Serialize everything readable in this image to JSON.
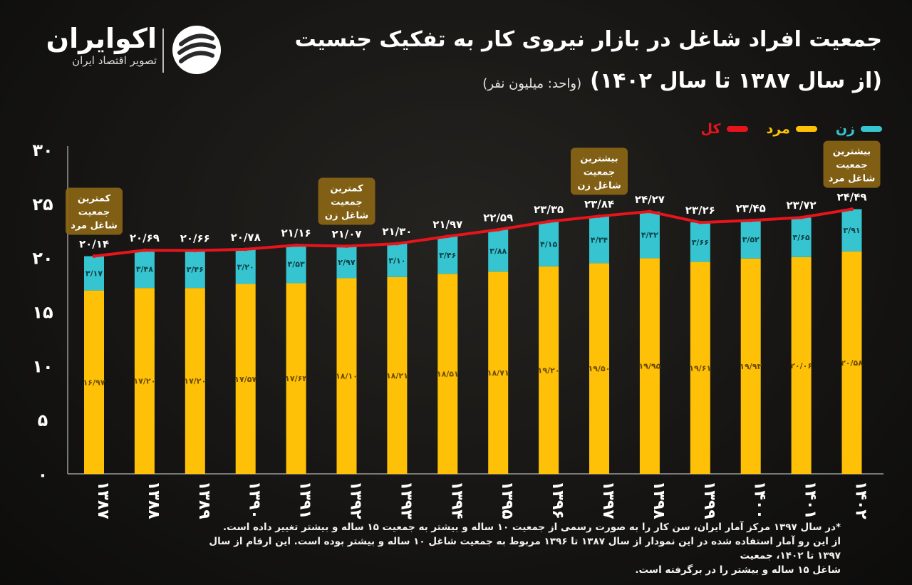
{
  "header": {
    "title": "جمعیت افراد شاغل در بازار نیروی کار به تفکیک جنسیت",
    "subtitle": "(از سال ۱۳۸۷ تا سال ۱۴۰۲)",
    "unit": "(واحد: میلیون نفر)"
  },
  "brand": {
    "name": "اکوایران",
    "tagline": "تصویر اقتصاد ایران",
    "icon": "ekoiran-logo-icon"
  },
  "legend": [
    {
      "label": "زن",
      "color": "#36c5d0"
    },
    {
      "label": "مرد",
      "color": "#ffc107"
    },
    {
      "label": "کل",
      "color": "#e8141c"
    }
  ],
  "chart_data": {
    "type": "bar",
    "stacked": true,
    "categories": [
      "۱۳۸۷",
      "۱۳۸۸",
      "۱۳۸۹",
      "۱۳۹۰",
      "۱۳۹۱",
      "۱۳۹۲",
      "۱۳۹۳",
      "۱۳۹۴",
      "۱۳۹۵",
      "۱۳۹۶",
      "۱۳۹۷",
      "۱۳۹۸",
      "۱۳۹۹",
      "۱۴۰۰",
      "۱۴۰۱",
      "۱۴۰۲"
    ],
    "series": [
      {
        "name": "مرد",
        "color": "#ffc107",
        "values": [
          16.97,
          17.2,
          17.2,
          17.57,
          17.64,
          18.1,
          18.21,
          18.51,
          18.71,
          19.2,
          19.5,
          19.95,
          19.61,
          19.93,
          20.06,
          20.58
        ],
        "labels": [
          "۱۶/۹۷",
          "۱۷/۲۰",
          "۱۷/۲۰",
          "۱۷/۵۷",
          "۱۷/۶۴",
          "۱۸/۱۰",
          "۱۸/۲۱",
          "۱۸/۵۱",
          "۱۸/۷۱",
          "۱۹/۲۰",
          "۱۹/۵۰",
          "۱۹/۹۵",
          "۱۹/۶۱",
          "۱۹/۹۳",
          "۲۰/۰۶",
          "۲۰/۵۸"
        ]
      },
      {
        "name": "زن",
        "color": "#36c5d0",
        "values": [
          3.17,
          3.48,
          3.46,
          3.2,
          3.53,
          2.97,
          3.1,
          3.46,
          3.88,
          4.15,
          4.34,
          4.32,
          3.66,
          3.52,
          3.65,
          3.91
        ],
        "labels": [
          "۳/۱۷",
          "۳/۴۸",
          "۳/۴۶",
          "۳/۲۰",
          "۳/۵۳",
          "۲/۹۷",
          "۳/۱۰",
          "۳/۴۶",
          "۳/۸۸",
          "۴/۱۵",
          "۴/۳۴",
          "۴/۳۲",
          "۳/۶۶",
          "۳/۵۲",
          "۳/۶۵",
          "۳/۹۱"
        ]
      },
      {
        "name": "کل",
        "color": "#e8141c",
        "type": "line",
        "values": [
          20.14,
          20.69,
          20.66,
          20.78,
          21.16,
          21.07,
          21.3,
          21.97,
          22.59,
          23.35,
          23.84,
          24.27,
          23.26,
          23.45,
          23.72,
          24.49
        ],
        "labels": [
          "۲۰/۱۴",
          "۲۰/۶۹",
          "۲۰/۶۶",
          "۲۰/۷۸",
          "۲۱/۱۶",
          "۲۱/۰۷",
          "۲۱/۳۰",
          "۲۱/۹۷",
          "۲۲/۵۹",
          "۲۳/۳۵",
          "۲۳/۸۴",
          "۲۴/۲۷",
          "۲۳/۲۶",
          "۲۳/۴۵",
          "۲۳/۷۲",
          "۲۴/۴۹"
        ]
      }
    ],
    "ylim": [
      0,
      30
    ],
    "yticks": [
      {
        "value": 0,
        "label": "۰"
      },
      {
        "value": 5,
        "label": "۵"
      },
      {
        "value": 10,
        "label": "۱۰"
      },
      {
        "value": 15,
        "label": "۱۵"
      },
      {
        "value": 20,
        "label": "۲۰"
      },
      {
        "value": 25,
        "label": "۲۵"
      },
      {
        "value": 30,
        "label": "۳۰"
      }
    ],
    "annotations": [
      {
        "index": 0,
        "text": [
          "کمترین",
          "جمعیت",
          "شاغل مرد"
        ]
      },
      {
        "index": 5,
        "text": [
          "کمترین",
          "جمعیت",
          "شاغل زن"
        ]
      },
      {
        "index": 10,
        "text": [
          "بیشترین",
          "جمعیت",
          "شاغل زن"
        ]
      },
      {
        "index": 15,
        "text": [
          "بیشترین",
          "جمعیت",
          "شاغل مرد"
        ]
      }
    ],
    "grid": false
  },
  "footnote": [
    "*در سال ۱۳۹۷ مرکز آمار ایران، سن کار را به صورت رسمی از جمعیت ۱۰ ساله و بیشتر به جمعیت ۱۵ ساله و بیشتر تغییر داده است.",
    "از این رو آمار استفاده شده در این نمودار از سال ۱۳۸۷ تا ۱۳۹۶ مربوط به جمعیت شاغل ۱۰ ساله و بیشتر بوده است. این ارقام از سال ۱۳۹۷ تا ۱۴۰۲، جمعیت",
    "شاغل ۱۵ ساله و بیشتر را در برگرفته است."
  ]
}
